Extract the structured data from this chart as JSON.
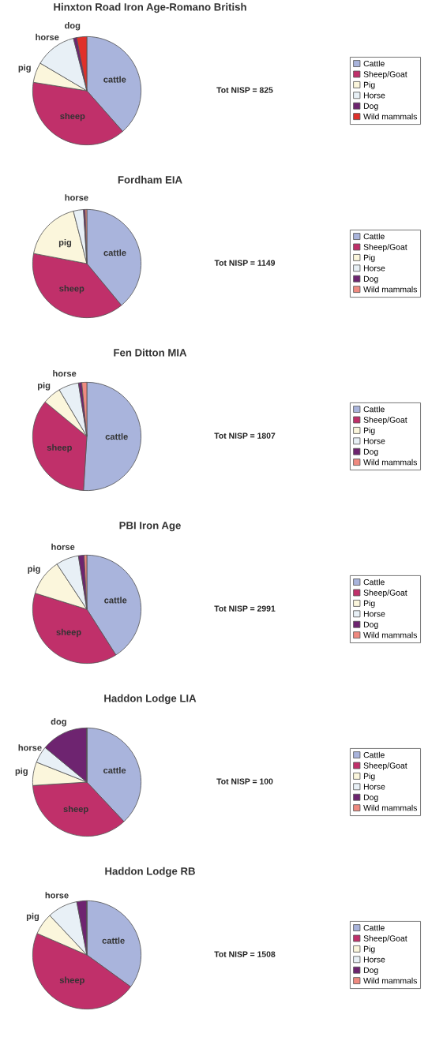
{
  "chart_data": [
    {
      "type": "pie",
      "title": "Hinxton Road Iron Age-Romano British",
      "categories": [
        "Cattle",
        "Sheep/Goat",
        "Pig",
        "Horse",
        "Dog",
        "Wild mammals"
      ],
      "values": [
        38.5,
        39,
        6,
        12.5,
        1,
        3
      ],
      "colors": [
        "#a9b4dc",
        "#c0306a",
        "#fbf6dc",
        "#e8f0f6",
        "#6e2470",
        "#e0302a"
      ],
      "annotations": [
        {
          "text": "cattle",
          "x": "Cattle"
        },
        {
          "text": "sheep",
          "x": "Sheep/Goat"
        },
        {
          "text": "pig",
          "x": "Pig"
        },
        {
          "text": "horse",
          "x": "Horse"
        },
        {
          "text": "dog",
          "x": "Dog"
        },
        "Tot NISP = 825"
      ],
      "legend": "right"
    },
    {
      "type": "pie",
      "title": "Fordham EIA",
      "categories": [
        "Cattle",
        "Sheep/Goat",
        "Pig",
        "Horse",
        "Dog",
        "Wild mammals"
      ],
      "values": [
        39,
        39,
        18,
        3,
        0.5,
        0.5
      ],
      "colors": [
        "#a9b4dc",
        "#c0306a",
        "#fbf6dc",
        "#e8f0f6",
        "#6e2470",
        "#f08a80"
      ],
      "annotations": [
        {
          "text": "cattle",
          "x": "Cattle"
        },
        {
          "text": "sheep",
          "x": "Sheep/Goat"
        },
        {
          "text": "pig",
          "x": "Pig"
        },
        {
          "text": "horse",
          "x": "Horse"
        },
        "Tot NISP = 1149"
      ],
      "legend": "right"
    },
    {
      "type": "pie",
      "title": "Fen Ditton MIA",
      "categories": [
        "Cattle",
        "Sheep/Goat",
        "Pig",
        "Horse",
        "Dog",
        "Wild mammals"
      ],
      "values": [
        51,
        35,
        5.5,
        6,
        1,
        1.5
      ],
      "colors": [
        "#a9b4dc",
        "#c0306a",
        "#fbf6dc",
        "#e8f0f6",
        "#6e2470",
        "#f08a80"
      ],
      "annotations": [
        {
          "text": "cattle",
          "x": "Cattle"
        },
        {
          "text": "sheep",
          "x": "Sheep/Goat"
        },
        {
          "text": "pig",
          "x": "Pig"
        },
        {
          "text": "horse",
          "x": "Horse"
        },
        "Tot NISP = 1807"
      ],
      "legend": "right"
    },
    {
      "type": "pie",
      "title": "PBI Iron Age",
      "categories": [
        "Cattle",
        "Sheep/Goat",
        "Pig",
        "Horse",
        "Dog",
        "Wild mammals"
      ],
      "values": [
        41,
        38.8,
        10.9,
        6.8,
        1.7,
        0.8
      ],
      "colors": [
        "#a9b4dc",
        "#c0306a",
        "#fbf6dc",
        "#e8f0f6",
        "#6e2470",
        "#f08a80"
      ],
      "annotations": [
        {
          "text": "cattle",
          "x": "Cattle"
        },
        {
          "text": "sheep",
          "x": "Sheep/Goat"
        },
        {
          "text": "pig",
          "x": "Pig"
        },
        {
          "text": "horse",
          "x": "Horse"
        },
        "Tot NISP = 2991"
      ],
      "legend": "right"
    },
    {
      "type": "pie",
      "title": "Haddon Lodge LIA",
      "categories": [
        "Cattle",
        "Sheep/Goat",
        "Pig",
        "Horse",
        "Dog",
        "Wild mammals"
      ],
      "values": [
        38,
        36,
        7,
        5,
        14,
        0
      ],
      "colors": [
        "#a9b4dc",
        "#c0306a",
        "#fbf6dc",
        "#e8f0f6",
        "#6e2470",
        "#f08a80"
      ],
      "annotations": [
        {
          "text": "cattle",
          "x": "Cattle"
        },
        {
          "text": "sheep",
          "x": "Sheep/Goat"
        },
        {
          "text": "pig",
          "x": "Pig"
        },
        {
          "text": "horse",
          "x": "Horse"
        },
        {
          "text": "dog",
          "x": "Dog"
        },
        "Tot NISP = 100"
      ],
      "legend": "right"
    },
    {
      "type": "pie",
      "title": "Haddon Lodge RB",
      "categories": [
        "Cattle",
        "Sheep/Goat",
        "Pig",
        "Horse",
        "Dog",
        "Wild mammals"
      ],
      "values": [
        35,
        46.5,
        6.5,
        9,
        3,
        0
      ],
      "colors": [
        "#a9b4dc",
        "#c0306a",
        "#fbf6dc",
        "#e8f0f6",
        "#6e2470",
        "#f08a80"
      ],
      "annotations": [
        {
          "text": "cattle",
          "x": "Cattle"
        },
        {
          "text": "sheep",
          "x": "Sheep/Goat"
        },
        {
          "text": "pig",
          "x": "Pig"
        },
        {
          "text": "horse",
          "x": "Horse"
        },
        "Tot NISP = 1508"
      ],
      "legend": "right"
    }
  ]
}
